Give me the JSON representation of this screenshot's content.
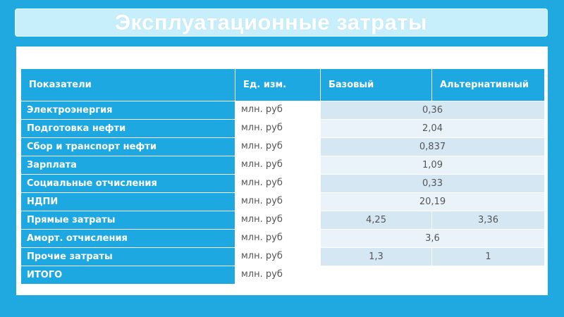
{
  "slide": {
    "title": "Эксплуатационные затраты"
  },
  "table": {
    "headers": [
      "Показатели",
      "Ед. изм.",
      "Базовый",
      "Альтернативный"
    ],
    "rows": [
      {
        "label": "Электроэнергия",
        "unit": "млн. руб",
        "value": "0,36"
      },
      {
        "label": "Подготовка нефти",
        "unit": "млн. руб",
        "value": "2,04"
      },
      {
        "label": "Сбор и транспорт нефти",
        "unit": "млн. руб",
        "value": "0,837"
      },
      {
        "label": "Зарплата",
        "unit": "млн. руб",
        "value": "1,09"
      },
      {
        "label": "Социальные отчисления",
        "unit": "млн. руб",
        "value": "0,33"
      },
      {
        "label": "НДПИ",
        "unit": "млн. руб",
        "value": "20,19"
      },
      {
        "label": "Прямые затраты",
        "unit": "млн. руб",
        "base": "4,25",
        "alt": "3,36"
      },
      {
        "label": "Аморт. отчисления",
        "unit": "млн. руб",
        "value": "3,6"
      },
      {
        "label": "Прочие затраты",
        "unit": "млн. руб",
        "base": "1,3",
        "alt": "1"
      },
      {
        "label": "ИТОГО",
        "unit": "млн. руб",
        "base": "",
        "alt": ""
      }
    ]
  },
  "colors": {
    "background": "#1fa9e0",
    "title_bar": "#c7eefb",
    "header_fill": "#1ea8e2",
    "row_light": "#eaf3fa",
    "row_dark": "#d6e7f4"
  }
}
